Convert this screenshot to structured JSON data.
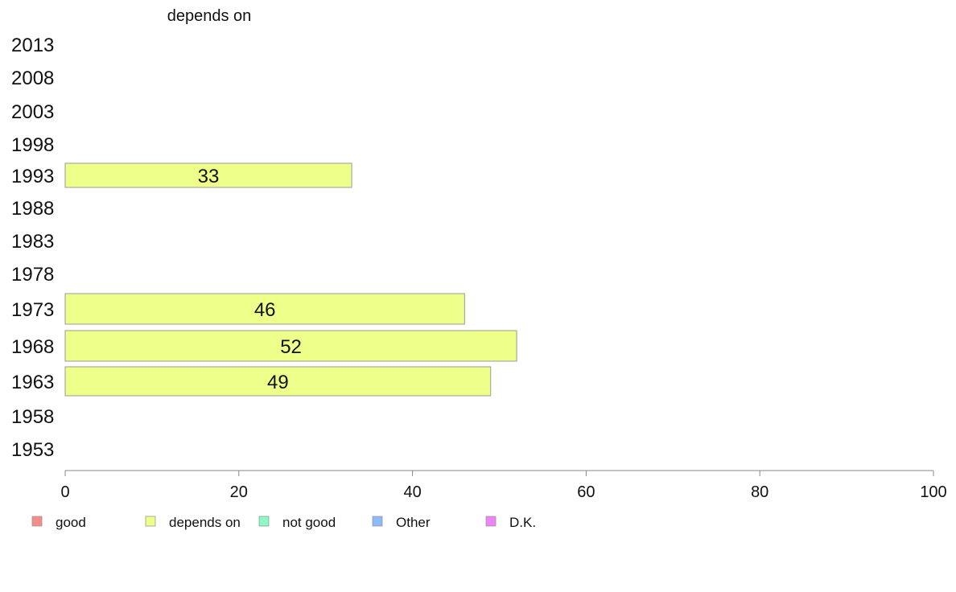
{
  "chart_data": {
    "type": "bar",
    "orientation": "horizontal",
    "title": "depends on",
    "categories": [
      "2013",
      "2008",
      "2003",
      "1998",
      "1993",
      "1988",
      "1983",
      "1978",
      "1973",
      "1968",
      "1963",
      "1958",
      "1953"
    ],
    "series": [
      {
        "name": "depends on",
        "color": "#eeff8a",
        "values": [
          null,
          null,
          null,
          null,
          33,
          null,
          null,
          null,
          46,
          52,
          49,
          null,
          null
        ]
      }
    ],
    "xlim": [
      0,
      100
    ],
    "xticks": [
      "0",
      "20",
      "40",
      "60",
      "80",
      "100"
    ],
    "grid": false,
    "legend": {
      "placement": "bottom",
      "items": [
        {
          "label": "good",
          "color": "#f48c8c"
        },
        {
          "label": "depends on",
          "color": "#eeff8a"
        },
        {
          "label": "not good",
          "color": "#8cf7c0"
        },
        {
          "label": "Other",
          "color": "#8cbaf7"
        },
        {
          "label": "D.K.",
          "color": "#ee84f5"
        }
      ]
    }
  }
}
